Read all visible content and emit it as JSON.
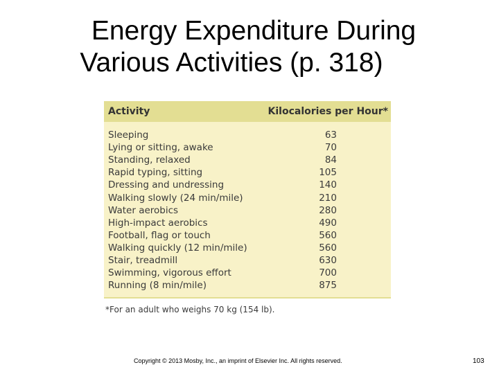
{
  "slide": {
    "title_line1": "Energy Expenditure During",
    "title_line2": "Various Activities (p. 318)"
  },
  "table": {
    "columns": [
      "Activity",
      "Kilocalories per Hour*"
    ],
    "rows": [
      {
        "activity": "Sleeping",
        "kcal": "63"
      },
      {
        "activity": "Lying or sitting, awake",
        "kcal": "70"
      },
      {
        "activity": "Standing, relaxed",
        "kcal": "84"
      },
      {
        "activity": "Rapid typing, sitting",
        "kcal": "105"
      },
      {
        "activity": "Dressing and undressing",
        "kcal": "140"
      },
      {
        "activity": "Walking slowly (24 min/mile)",
        "kcal": "210"
      },
      {
        "activity": "Water aerobics",
        "kcal": "280"
      },
      {
        "activity": "High-impact aerobics",
        "kcal": "490"
      },
      {
        "activity": "Football, flag or touch",
        "kcal": "560"
      },
      {
        "activity": "Walking quickly (12 min/mile)",
        "kcal": "560"
      },
      {
        "activity": "Stair, treadmill",
        "kcal": "630"
      },
      {
        "activity": "Swimming, vigorous effort",
        "kcal": "700"
      },
      {
        "activity": "Running (8 min/mile)",
        "kcal": "875"
      }
    ],
    "footnote": "*For an adult who weighs 70 kg (154 lb).",
    "colors": {
      "header": "#e3de93",
      "body": "#f8f2c8"
    }
  },
  "footer": {
    "copyright": "Copyright © 2013 Mosby, Inc., an imprint of Elsevier Inc. All rights reserved.",
    "page_number": "103"
  }
}
